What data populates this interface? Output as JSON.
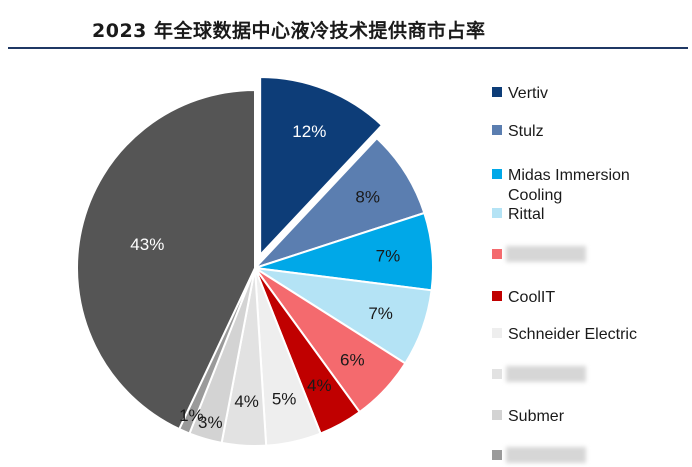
{
  "title": "2023 年全球数据中心液冷技术提供商市占率",
  "chart_data": {
    "type": "pie",
    "title": "2023 年全球数据中心液冷技术提供商市占率",
    "slices": [
      {
        "name": "Vertiv",
        "value": 12,
        "label": "12%",
        "color": "#0d3d78",
        "label_color": "#ffffff",
        "exploded": true
      },
      {
        "name": "Stulz",
        "value": 8,
        "label": "8%",
        "color": "#5b7eb0",
        "label_color": "#1a1a1a",
        "exploded": false
      },
      {
        "name": "Midas Immersion Cooling",
        "value": 7,
        "label": "7%",
        "color": "#00a8e8",
        "label_color": "#1a1a1a",
        "exploded": false
      },
      {
        "name": "Rittal",
        "value": 7,
        "label": "7%",
        "color": "#b4e3f5",
        "label_color": "#1a1a1a",
        "exploded": false
      },
      {
        "name": "",
        "value": 6,
        "label": "6%",
        "color": "#f46a6e",
        "label_color": "#1a1a1a",
        "exploded": false
      },
      {
        "name": "CoolIT",
        "value": 4,
        "label": "4%",
        "color": "#c00000",
        "label_color": "#1a1a1a",
        "exploded": false
      },
      {
        "name": "Schneider Electric",
        "value": 5,
        "label": "5%",
        "color": "#eeeeee",
        "label_color": "#1a1a1a",
        "exploded": false
      },
      {
        "name": "",
        "value": 4,
        "label": "4%",
        "color": "#e2e2e2",
        "label_color": "#1a1a1a",
        "exploded": false
      },
      {
        "name": "Submer",
        "value": 3,
        "label": "3%",
        "color": "#d3d3d3",
        "label_color": "#1a1a1a",
        "exploded": false
      },
      {
        "name": "",
        "value": 1,
        "label": "1%",
        "color": "#9a9a9a",
        "label_color": "#1a1a1a",
        "exploded": false
      },
      {
        "name": "",
        "value": 43,
        "label": "43%",
        "color": "#555555",
        "label_color": "#ffffff",
        "exploded": false
      }
    ],
    "legend": [
      {
        "label": "Vertiv",
        "color": "#0d3d78",
        "obscured": false
      },
      {
        "label": "Stulz",
        "color": "#5b7eb0",
        "obscured": false
      },
      {
        "label": "Midas Immersion Cooling",
        "color": "#00a8e8",
        "obscured": false
      },
      {
        "label": "Rittal",
        "color": "#b4e3f5",
        "obscured": false
      },
      {
        "label": "",
        "color": "#f46a6e",
        "obscured": true
      },
      {
        "label": "CoolIT",
        "color": "#c00000",
        "obscured": false
      },
      {
        "label": "Schneider Electric",
        "color": "#eeeeee",
        "obscured": false
      },
      {
        "label": "",
        "color": "#e2e2e2",
        "obscured": true
      },
      {
        "label": "Submer",
        "color": "#d3d3d3",
        "obscured": false
      },
      {
        "label": "",
        "color": "#9a9a9a",
        "obscured": true
      }
    ],
    "legend_position": "right"
  }
}
